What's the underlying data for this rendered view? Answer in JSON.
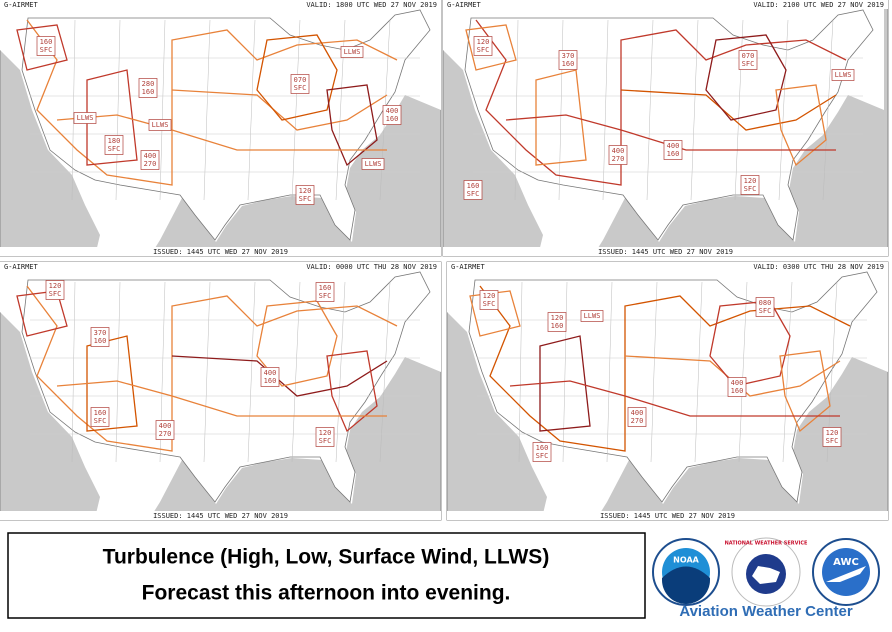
{
  "panels": [
    {
      "product": "G-AIRMET",
      "valid": "VALID: 1800 UTC WED 27 NOV 2019",
      "issued": "ISSUED: 1445 UTC WED 27 NOV 2019",
      "labels": [
        [
          "LLWS"
        ],
        [
          "070",
          "SFC"
        ],
        [
          "160",
          "SFC"
        ],
        [
          "280",
          "160"
        ],
        [
          "LLWS"
        ],
        [
          "LLWS"
        ],
        [
          "180",
          "SFC"
        ],
        [
          "400",
          "270"
        ],
        [
          "400",
          "160"
        ],
        [
          "LLWS"
        ],
        [
          "120",
          "SFC"
        ]
      ]
    },
    {
      "product": "G-AIRMET",
      "valid": "VALID: 2100 UTC WED 27 NOV 2019",
      "issued": "ISSUED: 1445 UTC WED 27 NOV 2019",
      "labels": [
        [
          "120",
          "SFC"
        ],
        [
          "370",
          "160"
        ],
        [
          "070",
          "SFC"
        ],
        [
          "LLWS"
        ],
        [
          "400",
          "160"
        ],
        [
          "400",
          "270"
        ],
        [
          "160",
          "SFC"
        ],
        [
          "120",
          "SFC"
        ]
      ]
    },
    {
      "product": "G-AIRMET",
      "valid": "VALID: 0000 UTC THU 28 NOV 2019",
      "issued": "ISSUED: 1445 UTC WED 27 NOV 2019",
      "labels": [
        [
          "120",
          "SFC"
        ],
        [
          "160",
          "SFC"
        ],
        [
          "370",
          "160"
        ],
        [
          "160",
          "SFC"
        ],
        [
          "400",
          "270"
        ],
        [
          "400",
          "160"
        ],
        [
          "120",
          "SFC"
        ]
      ]
    },
    {
      "product": "G-AIRMET",
      "valid": "VALID: 0300 UTC THU 28 NOV 2019",
      "issued": "ISSUED: 1445 UTC WED 27 NOV 2019",
      "labels": [
        [
          "120",
          "SFC"
        ],
        [
          "LLWS"
        ],
        [
          "120",
          "160"
        ],
        [
          "080",
          "SFC"
        ],
        [
          "400",
          "160"
        ],
        [
          "400",
          "270"
        ],
        [
          "160",
          "SFC"
        ],
        [
          "120",
          "SFC"
        ]
      ]
    }
  ],
  "caption": {
    "line1": "Turbulence (High, Low, Surface Wind, LLWS)",
    "line2": "Forecast this afternoon into evening."
  },
  "logos": {
    "noaa": "NOAA",
    "nws": "NATIONAL WEATHER SERVICE",
    "awc": "AWC",
    "name": "Aviation Weather Center"
  }
}
